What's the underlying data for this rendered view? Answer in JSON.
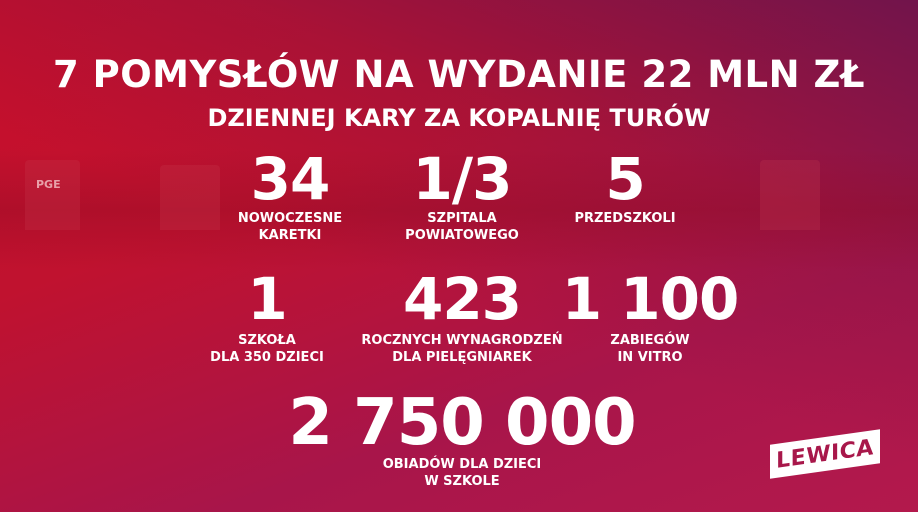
{
  "header": {
    "title": "7 POMYSŁÓW NA WYDANIE 22 MLN ZŁ",
    "subtitle": "DZIENNEJ KARY ZA KOPALNIĘ TURÓW"
  },
  "stats": [
    {
      "value": "34",
      "label1": "NOWOCZESNE",
      "label2": "KARETKI"
    },
    {
      "value": "1/3",
      "label1": "SZPITALA",
      "label2": "POWIATOWEGO"
    },
    {
      "value": "5",
      "label1": "PRZEDSZKOLI",
      "label2": ""
    },
    {
      "value": "1",
      "label1": "SZKOŁA",
      "label2": "DLA 350 DZIECI"
    },
    {
      "value": "423",
      "label1": "ROCZNYCH WYNAGRODZEŃ",
      "label2": "DLA PIELĘGNIAREK"
    },
    {
      "value": "1 100",
      "label1": "ZABIEGÓW",
      "label2": "IN VITRO"
    },
    {
      "value": "2 750 000",
      "label1": "OBIADÓW DLA DZIECI",
      "label2": "W SZKOLE"
    }
  ],
  "logo": {
    "text": "LEWICA"
  },
  "background_image_text": "PGE",
  "colors": {
    "primary_red": "#c70f2b",
    "purple": "#6a1a4a",
    "logo_text": "#a8174a"
  }
}
